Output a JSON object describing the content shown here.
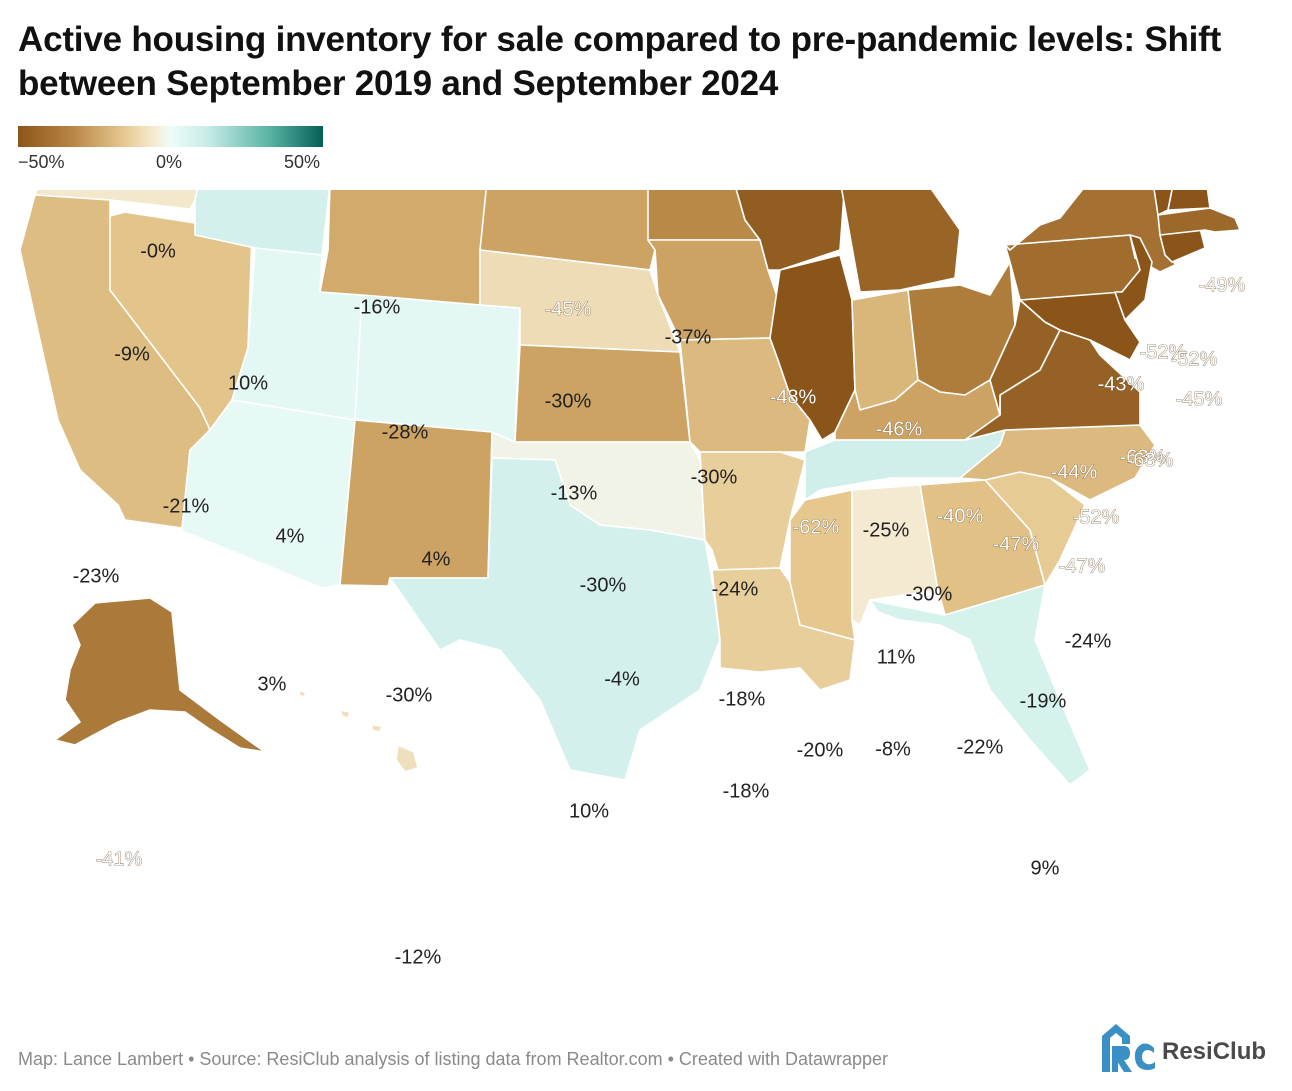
{
  "title": "Active housing inventory for sale compared to pre-pandemic levels: Shift between September 2019 and September 2024",
  "legend": {
    "min_label": "−50%",
    "mid_label": "0%",
    "max_label": "50%",
    "colors": [
      "#8b5519",
      "#e7ca93",
      "#eefcf9",
      "#045f56"
    ]
  },
  "footer": "Map: Lance Lambert • Source: ResiClub analysis of listing data from Realtor.com • Created with Datawrapper",
  "logo_text": "ResiClub",
  "states": [
    {
      "id": "WA",
      "label": "-0%",
      "value": 0
    },
    {
      "id": "OR",
      "label": "-9%",
      "value": -9
    },
    {
      "id": "CA",
      "label": "-23%",
      "value": -23
    },
    {
      "id": "NV",
      "label": "-21%",
      "value": -21
    },
    {
      "id": "ID",
      "label": "10%",
      "value": 10
    },
    {
      "id": "MT",
      "label": "-16%",
      "value": -16
    },
    {
      "id": "WY",
      "label": "-28%",
      "value": -28
    },
    {
      "id": "UT",
      "label": "4%",
      "value": 4
    },
    {
      "id": "CO",
      "label": "4%",
      "value": 4
    },
    {
      "id": "AZ",
      "label": "3%",
      "value": 3
    },
    {
      "id": "NM",
      "label": "-30%",
      "value": -30
    },
    {
      "id": "ND",
      "label": "-45%",
      "value": -45
    },
    {
      "id": "SD",
      "label": "-30%",
      "value": -30
    },
    {
      "id": "NE",
      "label": "-13%",
      "value": -13
    },
    {
      "id": "KS",
      "label": "-30%",
      "value": -30
    },
    {
      "id": "OK",
      "label": "-4%",
      "value": -4
    },
    {
      "id": "TX",
      "label": "10%",
      "value": 10
    },
    {
      "id": "MN",
      "label": "-37%",
      "value": -37
    },
    {
      "id": "IA",
      "label": "-30%",
      "value": -30
    },
    {
      "id": "MO",
      "label": "-24%",
      "value": -24
    },
    {
      "id": "AR",
      "label": "-18%",
      "value": -18
    },
    {
      "id": "LA",
      "label": "-18%",
      "value": -18
    },
    {
      "id": "WI",
      "label": "-48%",
      "value": -48
    },
    {
      "id": "IL",
      "label": "-62%",
      "value": -62
    },
    {
      "id": "MI",
      "label": "-46%",
      "value": -46
    },
    {
      "id": "IN",
      "label": "-25%",
      "value": -25
    },
    {
      "id": "OH",
      "label": "-40%",
      "value": -40
    },
    {
      "id": "KY",
      "label": "-30%",
      "value": -30
    },
    {
      "id": "TN",
      "label": "11%",
      "value": 11
    },
    {
      "id": "MS",
      "label": "-20%",
      "value": -20
    },
    {
      "id": "AL",
      "label": "-8%",
      "value": -8
    },
    {
      "id": "GA",
      "label": "-22%",
      "value": -22
    },
    {
      "id": "FL",
      "label": "9%",
      "value": 9
    },
    {
      "id": "SC",
      "label": "-19%",
      "value": -19
    },
    {
      "id": "NC",
      "label": "-24%",
      "value": -24
    },
    {
      "id": "VA",
      "label": "-47%",
      "value": -47
    },
    {
      "id": "WV",
      "label": "-47%",
      "value": -47
    },
    {
      "id": "MD",
      "label": "-52%",
      "value": -52
    },
    {
      "id": "PA",
      "label": "-44%",
      "value": -44
    },
    {
      "id": "NY",
      "label": "-43%",
      "value": -43
    },
    {
      "id": "NJ",
      "label": "-63%",
      "value": -63
    },
    {
      "id": "CT",
      "label": "-63%",
      "value": -63
    },
    {
      "id": "MA",
      "label": "-45%",
      "value": -45
    },
    {
      "id": "VT",
      "label": "-52%",
      "value": -52
    },
    {
      "id": "NH",
      "label": "-52%",
      "value": -52
    },
    {
      "id": "ME",
      "label": "-49%",
      "value": -49
    },
    {
      "id": "AK",
      "label": "-41%",
      "value": -41
    },
    {
      "id": "HI",
      "label": "-12%",
      "value": -12
    }
  ]
}
